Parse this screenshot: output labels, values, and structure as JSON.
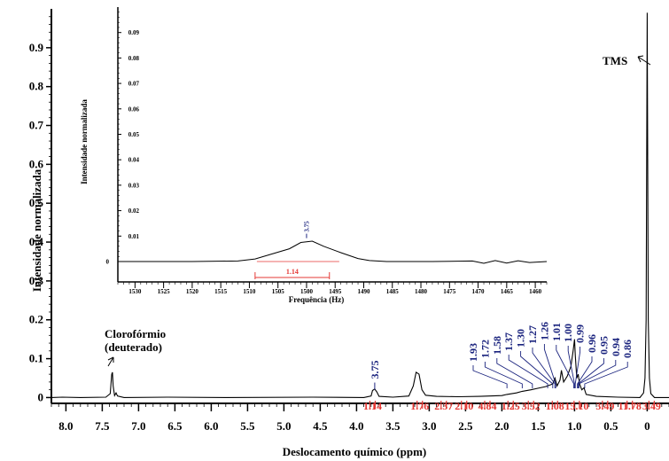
{
  "colors": {
    "axis": "#000000",
    "peak_label": "#1a237e",
    "integration": "#e53935",
    "spectrum": "#000000"
  },
  "chart_data": [
    {
      "type": "line",
      "name_role": "main-spectrum",
      "xlabel": "Deslocamento químico (ppm)",
      "ylabel": "Intensidade normalizada",
      "xlim": [
        8.2,
        -0.3
      ],
      "ylim": [
        -0.015,
        1.0
      ],
      "x_inverted": true,
      "xticks": [
        8.0,
        7.5,
        7.0,
        6.5,
        6.0,
        5.5,
        5.0,
        4.5,
        4.0,
        3.5,
        3.0,
        2.5,
        2.0,
        1.5,
        1.0,
        0.5,
        0
      ],
      "xtick_labels": [
        "8.0",
        "7.5",
        "7.0",
        "6.5",
        "6.0",
        "5.5",
        "5.0",
        "4.5",
        "4.0",
        "3.5",
        "3.0",
        "2.5",
        "2.0",
        "1.5",
        "1.0",
        "0.5",
        "0"
      ],
      "yticks": [
        0,
        0.1,
        0.2,
        0.3,
        0.4,
        0.5,
        0.6,
        0.7,
        0.8,
        0.9
      ],
      "ytick_labels": [
        "0",
        "0.1",
        "0.2",
        "0.3",
        "0.4",
        "0.5",
        "0.6",
        "0.7",
        "0.8",
        "0.9"
      ],
      "spectrum": [
        [
          8.2,
          0.0
        ],
        [
          8.05,
          0.001
        ],
        [
          7.8,
          0.0
        ],
        [
          7.45,
          0.001
        ],
        [
          7.39,
          0.01
        ],
        [
          7.37,
          0.06
        ],
        [
          7.36,
          0.065
        ],
        [
          7.35,
          0.03
        ],
        [
          7.33,
          0.005
        ],
        [
          7.31,
          0.012
        ],
        [
          7.29,
          0.004
        ],
        [
          7.2,
          0.0
        ],
        [
          6.6,
          0.001
        ],
        [
          5.8,
          0.0
        ],
        [
          4.6,
          0.001
        ],
        [
          3.9,
          0.0
        ],
        [
          3.8,
          0.004
        ],
        [
          3.78,
          0.018
        ],
        [
          3.75,
          0.022
        ],
        [
          3.72,
          0.014
        ],
        [
          3.69,
          0.003
        ],
        [
          3.5,
          0.001
        ],
        [
          3.28,
          0.004
        ],
        [
          3.22,
          0.03
        ],
        [
          3.18,
          0.065
        ],
        [
          3.14,
          0.06
        ],
        [
          3.1,
          0.02
        ],
        [
          3.05,
          0.006
        ],
        [
          2.9,
          0.003
        ],
        [
          2.6,
          0.002
        ],
        [
          2.3,
          0.003
        ],
        [
          2.0,
          0.005
        ],
        [
          1.93,
          0.008
        ],
        [
          1.8,
          0.012
        ],
        [
          1.72,
          0.016
        ],
        [
          1.6,
          0.02
        ],
        [
          1.5,
          0.024
        ],
        [
          1.4,
          0.028
        ],
        [
          1.3,
          0.035
        ],
        [
          1.27,
          0.05
        ],
        [
          1.24,
          0.03
        ],
        [
          1.2,
          0.045
        ],
        [
          1.18,
          0.07
        ],
        [
          1.15,
          0.04
        ],
        [
          1.1,
          0.055
        ],
        [
          1.05,
          0.08
        ],
        [
          1.02,
          0.12
        ],
        [
          1.0,
          0.15
        ],
        [
          0.99,
          0.11
        ],
        [
          0.97,
          0.05
        ],
        [
          0.95,
          0.06
        ],
        [
          0.93,
          0.035
        ],
        [
          0.9,
          0.02
        ],
        [
          0.87,
          0.025
        ],
        [
          0.84,
          0.008
        ],
        [
          0.7,
          0.003
        ],
        [
          0.4,
          0.001
        ],
        [
          0.1,
          0.0
        ],
        [
          0.05,
          0.012
        ],
        [
          0.03,
          0.05
        ],
        [
          0.015,
          0.2
        ],
        [
          0.0,
          0.99
        ],
        [
          -0.015,
          0.2
        ],
        [
          -0.03,
          0.05
        ],
        [
          -0.05,
          0.01
        ],
        [
          -0.1,
          0.0
        ],
        [
          -0.3,
          0.0
        ]
      ],
      "peak_labels": [
        {
          "ppm": 3.75,
          "label": "3.75",
          "height": 0.12
        },
        {
          "ppm": 1.93,
          "label": "1.93"
        },
        {
          "ppm": 1.72,
          "label": "1.72"
        },
        {
          "ppm": 1.58,
          "label": "1.58"
        },
        {
          "ppm": 1.37,
          "label": "1.37"
        },
        {
          "ppm": 1.3,
          "label": "1.30"
        },
        {
          "ppm": 1.27,
          "label": "1.27"
        },
        {
          "ppm": 1.26,
          "label": "1.26"
        },
        {
          "ppm": 1.01,
          "label": "1.01"
        },
        {
          "ppm": 1.0,
          "label": "1.00"
        },
        {
          "ppm": 0.99,
          "label": "0.99"
        },
        {
          "ppm": 0.96,
          "label": "0.96"
        },
        {
          "ppm": 0.95,
          "label": "0.95"
        },
        {
          "ppm": 0.94,
          "label": "0.94"
        },
        {
          "ppm": 0.86,
          "label": "0.86"
        }
      ],
      "integrals": [
        {
          "label": "1.14",
          "ppm": 3.78
        },
        {
          "label": "1.76",
          "ppm": 3.13
        },
        {
          "label": "2.37",
          "ppm": 2.8
        },
        {
          "label": "2.10",
          "ppm": 2.52
        },
        {
          "label": "4.84",
          "ppm": 2.2
        },
        {
          "label": "1.25",
          "ppm": 1.88
        },
        {
          "label": "3.52",
          "ppm": 1.6
        },
        {
          "label": "1.08",
          "ppm": 1.27
        },
        {
          "label": "15.10",
          "ppm": 0.97
        },
        {
          "label": "3.49",
          "ppm": 0.58
        },
        {
          "label": "11.78",
          "ppm": 0.24
        },
        {
          "label": "3.49",
          "ppm": -0.06
        }
      ],
      "annotations": [
        {
          "text": "TMS",
          "ppm": 0.0
        },
        {
          "text": "Clorofórmio",
          "line2": "(deuterado)",
          "ppm": 7.36
        }
      ]
    },
    {
      "type": "line",
      "name_role": "inset-zoom",
      "xlabel": "Frequência (Hz)",
      "ylabel": "Intensidade normalizada",
      "xlim": [
        1533,
        1458
      ],
      "ylim": [
        -0.004,
        0.1
      ],
      "x_inverted": true,
      "xticks": [
        1530,
        1525,
        1520,
        1515,
        1510,
        1505,
        1500,
        1495,
        1490,
        1485,
        1480,
        1475,
        1470,
        1465,
        1460
      ],
      "xtick_labels": [
        "1530",
        "1525",
        "1520",
        "1515",
        "1510",
        "1505",
        "1500",
        "1495",
        "1490",
        "1485",
        "1480",
        "1475",
        "1470",
        "1465",
        "1460"
      ],
      "yticks": [
        0,
        0.01,
        0.02,
        0.03,
        0.04,
        0.05,
        0.06,
        0.07,
        0.08,
        0.09
      ],
      "ytick_labels": [
        "0",
        "0.01",
        "0.02",
        "0.03",
        "0.04",
        "0.05",
        "0.06",
        "0.07",
        "0.08",
        "0.09"
      ],
      "spectrum": [
        [
          1533,
          0.0
        ],
        [
          1520,
          0.0
        ],
        [
          1512,
          0.0002
        ],
        [
          1509,
          0.001
        ],
        [
          1506,
          0.003
        ],
        [
          1503,
          0.005
        ],
        [
          1501,
          0.0075
        ],
        [
          1499,
          0.008
        ],
        [
          1497,
          0.006
        ],
        [
          1494,
          0.0035
        ],
        [
          1491,
          0.0012
        ],
        [
          1489,
          0.0004
        ],
        [
          1486,
          0.0
        ],
        [
          1478,
          0.0
        ],
        [
          1471,
          0.0002
        ],
        [
          1469,
          -0.0007
        ],
        [
          1467,
          0.0004
        ],
        [
          1465,
          -0.0006
        ],
        [
          1463,
          0.0003
        ],
        [
          1461,
          -0.0004
        ],
        [
          1458,
          0.0
        ]
      ],
      "peak_labels": [
        {
          "hz": 1500,
          "label": "3.75"
        }
      ],
      "integrals": [
        {
          "label": "1.14",
          "from": 1509,
          "to": 1496
        }
      ]
    }
  ]
}
